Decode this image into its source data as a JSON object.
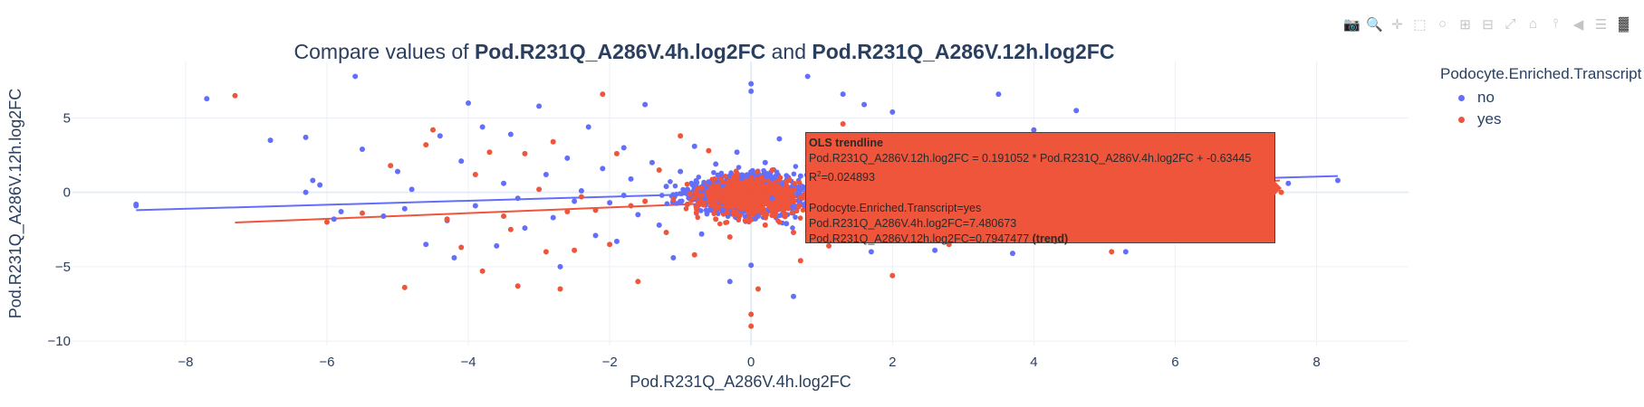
{
  "modebar": {
    "icons": [
      "camera-icon",
      "zoom-icon",
      "pan-icon",
      "box-select-icon",
      "lasso-icon",
      "zoom-in-icon",
      "zoom-out-icon",
      "autoscale-icon",
      "reset-axes-icon",
      "spike-lines-icon",
      "hover-closest-icon",
      "hover-compare-icon",
      "plotly-logo-icon"
    ]
  },
  "title": {
    "prefix": "Compare values of ",
    "var1": "Pod.R231Q_A286V.4h.log2FC",
    "mid": " and ",
    "var2": "Pod.R231Q_A286V.12h.log2FC"
  },
  "legend": {
    "title": "Podocyte.Enriched.Transcript",
    "items": [
      {
        "label": "no",
        "color": "#636EFA"
      },
      {
        "label": "yes",
        "color": "#EF553B"
      }
    ]
  },
  "hover": {
    "title": "OLS trendline",
    "equation": "Pod.R231Q_A286V.12h.log2FC = 0.191052 * Pod.R231Q_A286V.4h.log2FC + -0.63445",
    "r2_label": "R",
    "r2_sup": "2",
    "r2_value": "=0.024893",
    "group": "Podocyte.Enriched.Transcript=yes",
    "x_line": "Pod.R231Q_A286V.4h.log2FC=7.480673",
    "y_line": "Pod.R231Q_A286V.12h.log2FC=0.7947477",
    "y_suffix": "(trend)",
    "color": "#EF553B"
  },
  "chart_data": {
    "type": "scatter",
    "title": "Compare values of Pod.R231Q_A286V.4h.log2FC and Pod.R231Q_A286V.12h.log2FC",
    "xlabel": "Pod.R231Q_A286V.4h.log2FC",
    "ylabel": "Pod.R231Q_A286V.12h.log2FC",
    "xlim": [
      -9.6,
      9.3
    ],
    "ylim": [
      -10.3,
      8.8
    ],
    "xticks": [
      -8,
      -6,
      -4,
      -2,
      0,
      2,
      4,
      6,
      8
    ],
    "yticks": [
      -10,
      -5,
      0,
      5
    ],
    "grid": true,
    "legend_position": "right",
    "series": [
      {
        "name": "no",
        "color": "#636EFA",
        "points": [
          [
            -8.7,
            -0.8
          ],
          [
            -7.7,
            6.3
          ],
          [
            -6.8,
            3.5
          ],
          [
            -6.3,
            3.7
          ],
          [
            -6.2,
            0.8
          ],
          [
            -6.1,
            0.5
          ],
          [
            -6.3,
            0.0
          ],
          [
            -5.9,
            -1.8
          ],
          [
            -5.6,
            7.8
          ],
          [
            -5.5,
            2.9
          ],
          [
            -5.2,
            -1.6
          ],
          [
            -5.0,
            1.4
          ],
          [
            -4.8,
            0.2
          ],
          [
            -4.6,
            -3.5
          ],
          [
            -4.4,
            3.8
          ],
          [
            -4.3,
            -1.9
          ],
          [
            -4.2,
            -4.4
          ],
          [
            -4.1,
            2.1
          ],
          [
            -4.0,
            6.0
          ],
          [
            -3.9,
            -0.9
          ],
          [
            -3.8,
            4.4
          ],
          [
            -3.6,
            -3.6
          ],
          [
            -3.5,
            0.6
          ],
          [
            -3.4,
            3.9
          ],
          [
            -3.2,
            -2.4
          ],
          [
            -3.0,
            5.8
          ],
          [
            -2.9,
            1.2
          ],
          [
            -2.8,
            -1.7
          ],
          [
            -2.7,
            -5.0
          ],
          [
            -2.6,
            2.3
          ],
          [
            -2.4,
            0.1
          ],
          [
            -2.3,
            4.4
          ],
          [
            -2.2,
            -2.9
          ],
          [
            -2.1,
            1.6
          ],
          [
            -2.0,
            -0.7
          ],
          [
            -1.9,
            -3.3
          ],
          [
            -1.8,
            3.0
          ],
          [
            -1.7,
            0.9
          ],
          [
            -1.6,
            -1.5
          ],
          [
            -1.5,
            5.9
          ],
          [
            -1.4,
            2.0
          ],
          [
            -1.3,
            -2.2
          ],
          [
            -1.2,
            0.4
          ],
          [
            -1.1,
            -4.4
          ],
          [
            -1.0,
            1.4
          ],
          [
            -0.9,
            -0.8
          ],
          [
            -0.8,
            3.1
          ],
          [
            -0.7,
            -2.8
          ],
          [
            -0.6,
            0.7
          ],
          [
            -0.5,
            1.9
          ],
          [
            -0.4,
            -1.2
          ],
          [
            -0.3,
            -6.0
          ],
          [
            -0.2,
            2.7
          ],
          [
            0.0,
            6.8
          ],
          [
            0.0,
            7.3
          ],
          [
            0.0,
            -4.9
          ],
          [
            0.1,
            -1.6
          ],
          [
            0.2,
            2.0
          ],
          [
            0.3,
            -0.4
          ],
          [
            0.4,
            3.6
          ],
          [
            0.5,
            -2.1
          ],
          [
            0.6,
            -7.0
          ],
          [
            0.7,
            1.1
          ],
          [
            0.8,
            7.8
          ],
          [
            0.9,
            -3.2
          ],
          [
            1.0,
            0.5
          ],
          [
            1.1,
            2.4
          ],
          [
            1.2,
            -1.0
          ],
          [
            1.3,
            6.6
          ],
          [
            1.4,
            -2.6
          ],
          [
            1.5,
            0.9
          ],
          [
            1.6,
            5.9
          ],
          [
            1.7,
            -4.0
          ],
          [
            1.8,
            0.2
          ],
          [
            2.0,
            5.4
          ],
          [
            2.2,
            -3.0
          ],
          [
            2.4,
            3.1
          ],
          [
            2.6,
            -3.9
          ],
          [
            2.8,
            1.4
          ],
          [
            3.0,
            -2.8
          ],
          [
            3.2,
            2.1
          ],
          [
            3.5,
            6.6
          ],
          [
            3.7,
            -4.1
          ],
          [
            4.0,
            4.2
          ],
          [
            4.3,
            -3.3
          ],
          [
            4.6,
            5.5
          ],
          [
            5.0,
            2.3
          ],
          [
            5.3,
            -4.0
          ],
          [
            5.7,
            0.8
          ],
          [
            6.1,
            -2.5
          ],
          [
            6.7,
            -3.2
          ],
          [
            7.1,
            1.4
          ],
          [
            7.6,
            0.6
          ],
          [
            8.3,
            0.8
          ],
          [
            -8.7,
            -0.9
          ],
          [
            -5.8,
            -1.3
          ],
          [
            -4.9,
            -1.1
          ],
          [
            -3.3,
            -0.4
          ],
          [
            -2.5,
            -0.6
          ],
          [
            -1.8,
            -0.2
          ],
          [
            -0.9,
            0.2
          ],
          [
            -0.4,
            0.5
          ],
          [
            0.3,
            0.9
          ],
          [
            0.9,
            0.3
          ],
          [
            1.6,
            1.2
          ],
          [
            2.3,
            0.7
          ],
          [
            3.1,
            0.4
          ],
          [
            3.9,
            -0.2
          ]
        ]
      },
      {
        "name": "yes",
        "color": "#EF553B",
        "points": [
          [
            -7.3,
            6.5
          ],
          [
            -6.0,
            -2.0
          ],
          [
            -5.5,
            -1.4
          ],
          [
            -5.1,
            1.8
          ],
          [
            -4.9,
            -6.4
          ],
          [
            -4.6,
            3.2
          ],
          [
            -4.5,
            4.2
          ],
          [
            -4.3,
            -1.8
          ],
          [
            -4.1,
            -3.7
          ],
          [
            -3.9,
            1.2
          ],
          [
            -3.8,
            -5.3
          ],
          [
            -3.7,
            2.7
          ],
          [
            -3.5,
            -1.6
          ],
          [
            -3.4,
            -2.5
          ],
          [
            -3.3,
            -6.3
          ],
          [
            -3.2,
            2.6
          ],
          [
            -3.0,
            0.2
          ],
          [
            -2.9,
            -4.0
          ],
          [
            -2.8,
            3.4
          ],
          [
            -2.7,
            -6.5
          ],
          [
            -2.6,
            -1.3
          ],
          [
            -2.5,
            -3.9
          ],
          [
            -2.4,
            -0.3
          ],
          [
            -2.1,
            6.6
          ],
          [
            -2.0,
            -3.5
          ],
          [
            -1.9,
            2.6
          ],
          [
            -1.6,
            -6.0
          ],
          [
            -1.5,
            -0.6
          ],
          [
            -1.3,
            1.5
          ],
          [
            -1.2,
            -2.7
          ],
          [
            -1.0,
            3.8
          ],
          [
            -0.9,
            -0.8
          ],
          [
            -0.8,
            -4.2
          ],
          [
            -0.7,
            0.3
          ],
          [
            -0.6,
            2.8
          ],
          [
            -0.5,
            -1.8
          ],
          [
            -0.4,
            0.7
          ],
          [
            -0.3,
            -3.0
          ],
          [
            -0.2,
            1.2
          ],
          [
            -0.1,
            -0.4
          ],
          [
            0.0,
            -8.2
          ],
          [
            0.0,
            -9.0
          ],
          [
            0.1,
            -6.5
          ],
          [
            0.2,
            -2.2
          ],
          [
            0.3,
            1.5
          ],
          [
            0.4,
            -0.6
          ],
          [
            0.5,
            0.7
          ],
          [
            0.6,
            -2.7
          ],
          [
            0.7,
            -4.6
          ],
          [
            0.8,
            1.8
          ],
          [
            0.9,
            -1.2
          ],
          [
            1.0,
            3.0
          ],
          [
            1.1,
            -3.6
          ],
          [
            1.2,
            0.2
          ],
          [
            1.3,
            4.6
          ],
          [
            1.4,
            -1.5
          ],
          [
            1.6,
            2.0
          ],
          [
            1.8,
            -2.9
          ],
          [
            2.0,
            -5.6
          ],
          [
            2.2,
            1.0
          ],
          [
            2.5,
            -0.7
          ],
          [
            2.8,
            -3.5
          ],
          [
            3.0,
            2.5
          ],
          [
            3.3,
            -1.5
          ],
          [
            3.6,
            -3.2
          ],
          [
            3.9,
            1.0
          ],
          [
            4.3,
            -1.0
          ],
          [
            5.1,
            -4.0
          ],
          [
            7.5,
            0.0
          ],
          [
            -2.2,
            -1.2
          ],
          [
            -1.7,
            -0.9
          ],
          [
            -1.1,
            -0.5
          ],
          [
            -0.6,
            -0.2
          ],
          [
            0.1,
            0.0
          ],
          [
            0.6,
            -0.3
          ],
          [
            1.1,
            -0.6
          ],
          [
            1.5,
            -1.0
          ],
          [
            2.1,
            -0.4
          ]
        ]
      }
    ],
    "trendlines": [
      {
        "series": "no",
        "x": [
          -8.7,
          8.3
        ],
        "y": [
          -1.2,
          1.1
        ],
        "color": "#636EFA"
      },
      {
        "series": "yes",
        "slope": 0.191052,
        "intercept": -0.63445,
        "x": [
          -7.3,
          7.480673
        ],
        "color": "#EF553B"
      }
    ]
  }
}
